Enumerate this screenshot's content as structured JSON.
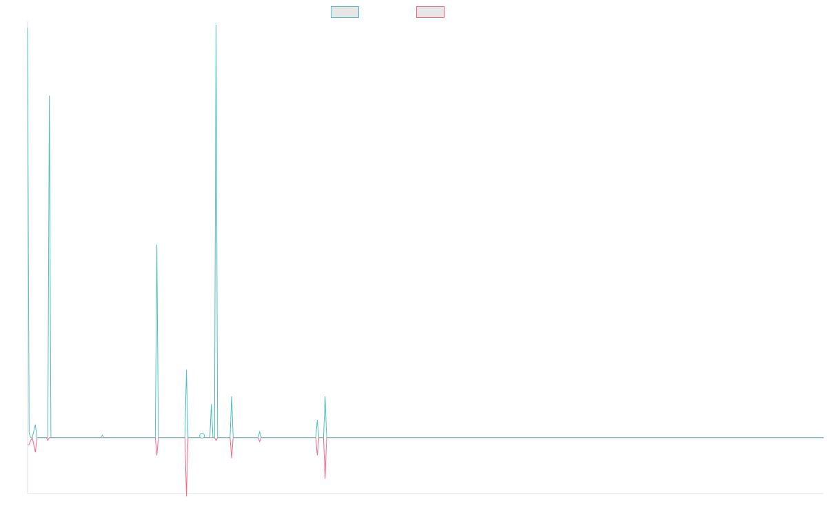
{
  "chart_data": {
    "type": "line",
    "title": "",
    "xlabel": "",
    "ylabel": "",
    "grid": false,
    "legend_position": "top-center",
    "x_count": 512,
    "ylim": [
      -95,
      700
    ],
    "colors": {
      "series_a": "#4bc0c0",
      "series_b": "#ff6384",
      "legend_fill": "#e6e6e6",
      "axis": "#e0e0e0"
    },
    "series": [
      {
        "name": "",
        "key": "series_a",
        "points": [
          [
            0,
            695
          ],
          [
            1,
            8
          ],
          [
            2,
            0
          ],
          [
            3,
            0
          ],
          [
            5,
            22
          ],
          [
            6,
            0
          ],
          [
            13,
            0
          ],
          [
            14,
            580
          ],
          [
            15,
            0
          ],
          [
            47,
            0
          ],
          [
            48,
            4
          ],
          [
            49,
            0
          ],
          [
            82,
            0
          ],
          [
            83,
            327
          ],
          [
            84,
            0
          ],
          [
            101,
            0
          ],
          [
            102,
            115
          ],
          [
            103,
            0
          ],
          [
            110,
            0
          ],
          [
            112,
            3
          ],
          [
            114,
            0
          ],
          [
            117,
            0
          ],
          [
            118,
            57
          ],
          [
            119,
            0
          ],
          [
            120,
            0
          ],
          [
            121,
            700
          ],
          [
            122,
            0
          ],
          [
            130,
            0
          ],
          [
            131,
            70
          ],
          [
            132,
            0
          ],
          [
            148,
            0
          ],
          [
            149,
            10
          ],
          [
            150,
            0
          ],
          [
            185,
            0
          ],
          [
            186,
            30
          ],
          [
            187,
            0
          ],
          [
            190,
            0
          ],
          [
            191,
            70
          ],
          [
            192,
            0
          ],
          [
            511,
            0
          ]
        ]
      },
      {
        "name": "",
        "key": "series_b",
        "points": [
          [
            0,
            -12
          ],
          [
            1,
            -12
          ],
          [
            2,
            -5
          ],
          [
            3,
            0
          ],
          [
            5,
            -25
          ],
          [
            6,
            0
          ],
          [
            12,
            0
          ],
          [
            13,
            -5
          ],
          [
            14,
            0
          ],
          [
            82,
            0
          ],
          [
            83,
            -30
          ],
          [
            84,
            0
          ],
          [
            101,
            0
          ],
          [
            102,
            -100
          ],
          [
            103,
            0
          ],
          [
            110,
            0
          ],
          [
            112,
            0
          ],
          [
            114,
            0
          ],
          [
            120,
            0
          ],
          [
            121,
            -5
          ],
          [
            122,
            0
          ],
          [
            130,
            0
          ],
          [
            131,
            -35
          ],
          [
            132,
            0
          ],
          [
            148,
            0
          ],
          [
            149,
            -7
          ],
          [
            150,
            0
          ],
          [
            185,
            0
          ],
          [
            186,
            -30
          ],
          [
            187,
            0
          ],
          [
            190,
            0
          ],
          [
            191,
            -70
          ],
          [
            192,
            0
          ],
          [
            511,
            0
          ]
        ]
      }
    ]
  }
}
